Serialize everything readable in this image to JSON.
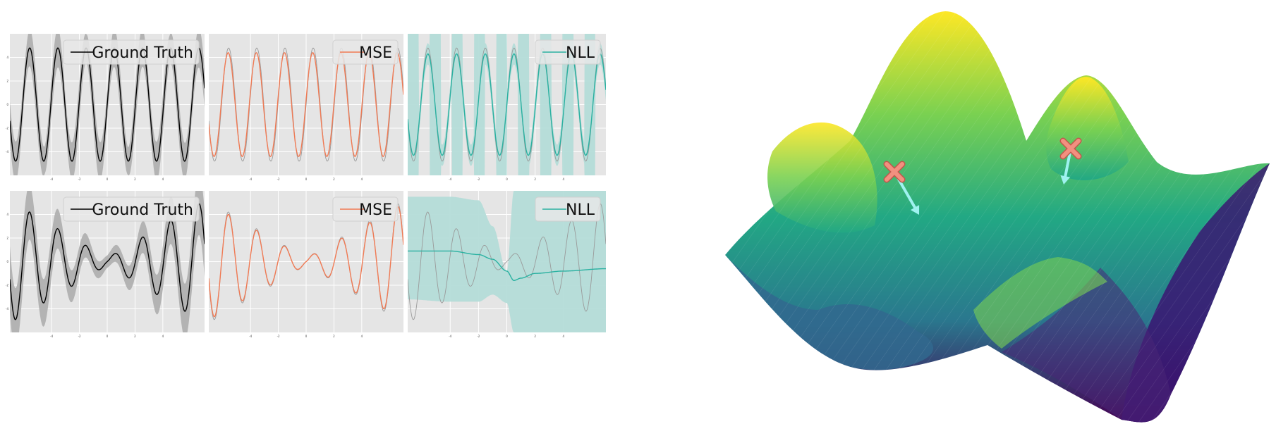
{
  "chart_data": [
    {
      "type": "line",
      "panel": "top-ground-truth",
      "legend": {
        "label": "Ground Truth",
        "placement": "top-right"
      },
      "xlim": [
        -7,
        7
      ],
      "ylim": [
        -6,
        6
      ],
      "grid": true,
      "x_ticks": [
        "-4",
        "-2",
        "0",
        "2",
        "4"
      ],
      "y_ticks": [
        "4",
        "2",
        "0",
        "-2",
        "-4"
      ],
      "series": [
        {
          "role": "truth",
          "function": "4.8*sin(3.1*x)",
          "color": "#000000"
        },
        {
          "role": "uncertainty",
          "function": "0.9+0.4*|sin(2.1*x)|",
          "color": "#b0b0b0"
        }
      ]
    },
    {
      "type": "line",
      "panel": "top-mse",
      "legend": {
        "label": "MSE",
        "placement": "top-right"
      },
      "xlim": [
        -7,
        7
      ],
      "ylim": [
        -6,
        6
      ],
      "grid": true,
      "x_ticks": [
        "-4",
        "-2",
        "0",
        "2",
        "4"
      ],
      "y_ticks": [],
      "series": [
        {
          "role": "truth",
          "function": "4.8*sin(3.1*x)",
          "color": "#9a9a9a"
        },
        {
          "role": "prediction",
          "function": "4.4*sin(3.1*x+0.1)",
          "color": "#f07a54"
        }
      ]
    },
    {
      "type": "line",
      "panel": "top-nll",
      "legend": {
        "label": "NLL",
        "placement": "top-right"
      },
      "xlim": [
        -7,
        7
      ],
      "ylim": [
        -6,
        6
      ],
      "grid": true,
      "x_ticks": [
        "-4",
        "-2",
        "0",
        "2",
        "4"
      ],
      "y_ticks": [],
      "series": [
        {
          "role": "truth",
          "function": "4.8*sin(3.1*x)",
          "color": "#9a9a9a"
        },
        {
          "role": "prediction",
          "function": "4.3*sin(3.1*x)",
          "color": "#2ab1a1"
        },
        {
          "role": "uncertainty",
          "function": "band",
          "color": "#b4dcd8"
        }
      ]
    },
    {
      "type": "line",
      "panel": "bottom-ground-truth",
      "legend": {
        "label": "Ground Truth",
        "placement": "top-right"
      },
      "xlim": [
        -7,
        7
      ],
      "ylim": [
        -6,
        6
      ],
      "grid": true,
      "x_ticks": [
        "-4",
        "-2",
        "0",
        "2",
        "4"
      ],
      "y_ticks": [
        "4",
        "2",
        "0",
        "-2",
        "-4"
      ],
      "series": [
        {
          "role": "truth",
          "function": "(0.3+0.7*|x|)*sin(3.1*x)",
          "color": "#000000"
        },
        {
          "role": "uncertainty",
          "function": "0.4+0.25*|x|",
          "color": "#b0b0b0"
        }
      ]
    },
    {
      "type": "line",
      "panel": "bottom-mse",
      "legend": {
        "label": "MSE",
        "placement": "top-right"
      },
      "xlim": [
        -7,
        7
      ],
      "ylim": [
        -6,
        6
      ],
      "grid": true,
      "x_ticks": [
        "-4",
        "-2",
        "0",
        "2",
        "4"
      ],
      "y_ticks": [],
      "series": [
        {
          "role": "truth",
          "function": "(0.3+0.7*|x|)*sin(3.1*x)",
          "color": "#9a9a9a"
        },
        {
          "role": "prediction",
          "function": "0.95*(0.3+0.7*|x|)*sin(3.1*x)",
          "color": "#f07a54"
        }
      ]
    },
    {
      "type": "line",
      "panel": "bottom-nll",
      "legend": {
        "label": "NLL",
        "placement": "top-right"
      },
      "xlim": [
        -7,
        7
      ],
      "ylim": [
        -6,
        6
      ],
      "grid": true,
      "x_ticks": [
        "-4",
        "-2",
        "0",
        "2",
        "4"
      ],
      "y_ticks": [],
      "series": [
        {
          "role": "truth",
          "function": "(0.3+0.7*|x|)*sin(3.1*x)",
          "color": "#9a9a9a"
        },
        {
          "role": "prediction",
          "points": [
            [
              -7,
              0.9
            ],
            [
              -4,
              0.9
            ],
            [
              -2,
              0.6
            ],
            [
              -1,
              0.2
            ],
            [
              0,
              -0.8
            ],
            [
              0.5,
              -1.6
            ],
            [
              1,
              -1.4
            ],
            [
              2,
              -1.0
            ],
            [
              4,
              -0.8
            ],
            [
              7,
              -0.6
            ]
          ],
          "color": "#2ab1a1"
        },
        {
          "role": "uncertainty",
          "points_upper": [
            [
              -7,
              5.5
            ],
            [
              -4,
              5.5
            ],
            [
              -2,
              5.2
            ],
            [
              -1,
              3.0
            ],
            [
              0,
              -0.8
            ],
            [
              0.5,
              6.0
            ],
            [
              7,
              6.0
            ]
          ],
          "points_lower": [
            [
              -7,
              -3.2
            ],
            [
              -4,
              -3.4
            ],
            [
              -2,
              -3.4
            ],
            [
              -1,
              -2.8
            ],
            [
              0,
              -3.5
            ],
            [
              0.5,
              -6.0
            ],
            [
              7,
              -6.0
            ]
          ],
          "color": "#b4dcd8"
        }
      ]
    },
    {
      "type": "surface",
      "panel": "loss-landscape",
      "colormap": "viridis",
      "markers": [
        {
          "symbol": "x",
          "color": "#f2907f",
          "arrow_color": "#9ff2f0"
        },
        {
          "symbol": "x",
          "color": "#f2907f",
          "arrow_color": "#9ff2f0"
        }
      ]
    }
  ]
}
